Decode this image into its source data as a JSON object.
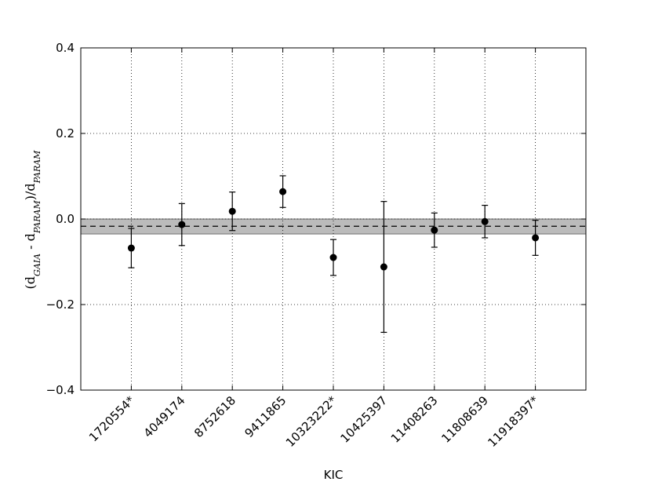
{
  "chart_data": {
    "type": "errorbar",
    "xlabel": "KIC",
    "ylabel": [
      "(d",
      "GAIA",
      " - d",
      "PARAM",
      ")/d",
      "PARAM"
    ],
    "categories": [
      "1720554*",
      "4049174",
      "8752618",
      "9411865",
      "10323222*",
      "10425397",
      "11408263",
      "11808639",
      "11918397*"
    ],
    "values": [
      -0.068,
      -0.013,
      0.018,
      0.064,
      -0.09,
      -0.112,
      -0.026,
      -0.006,
      -0.044
    ],
    "errors": [
      0.046,
      0.049,
      0.045,
      0.037,
      0.042,
      0.153,
      0.04,
      0.038,
      0.041
    ],
    "color": "#000000",
    "band": {
      "ymin": -0.035,
      "ymax": 0.0,
      "color": "#bbbbbb"
    },
    "hline": -0.017,
    "ylim": [
      -0.4,
      0.4
    ],
    "yticks": [
      {
        "value": -0.4,
        "label": "−0.4"
      },
      {
        "value": -0.2,
        "label": "−0.2"
      },
      {
        "value": 0.0,
        "label": "0.0"
      },
      {
        "value": 0.2,
        "label": "0.2"
      },
      {
        "value": 0.4,
        "label": "0.4"
      }
    ],
    "grid": true
  }
}
